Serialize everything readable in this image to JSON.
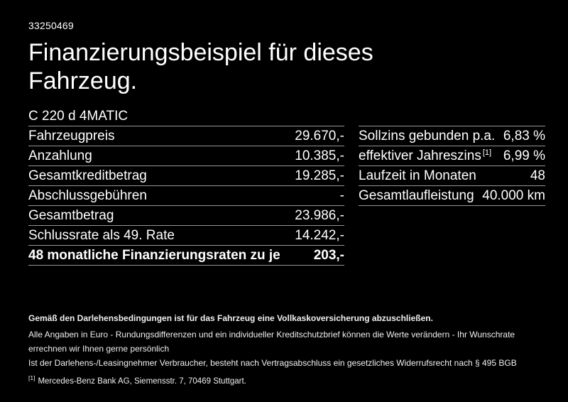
{
  "page": {
    "background_color": "#000000",
    "text_color": "#ffffff",
    "divider_color": "#969696"
  },
  "header": {
    "ref_number": "33250469",
    "title_lines": [
      "Finanzierungsbeispiel für dieses",
      "Fahrzeug."
    ],
    "model": "C 220 d 4MATIC"
  },
  "finance_table": {
    "rows": [
      {
        "label": "Fahrzeugpreis",
        "value": "29.670,-"
      },
      {
        "label": "Anzahlung",
        "value": "10.385,-"
      },
      {
        "label": "Gesamtkreditbetrag",
        "value": "19.285,-"
      },
      {
        "label": "Abschlussgebühren",
        "value": "-"
      },
      {
        "label": "Gesamtbetrag",
        "value": "23.986,-"
      },
      {
        "label": "Schlussrate als 49. Rate",
        "value": "14.242,-"
      },
      {
        "label": "48 monatliche Finanzierungsraten zu je",
        "value": "203,-"
      }
    ]
  },
  "conditions_table": {
    "rows": [
      {
        "label": "Sollzins gebunden p.a.",
        "sup": "",
        "value": "6,83 %"
      },
      {
        "label": "effektiver Jahreszins",
        "sup": "[1]",
        "value": "6,99 %"
      },
      {
        "label": "Laufzeit in Monaten",
        "sup": "",
        "value": "48"
      },
      {
        "label": "Gesamtlaufleistung",
        "sup": "",
        "value": "40.000 km"
      }
    ]
  },
  "footer": {
    "bold_note": "Gemäß den Darlehensbedingungen ist für das Fahrzeug eine Vollkaskoversicherung abzuschließen.",
    "notes": [
      "Alle Angaben in Euro - Rundungsdifferenzen und ein individueller Kreditschutzbrief können die Werte verändern - Ihr Wunschrate errechnen wir Ihnen gerne persönlich",
      "Ist der Darlehens-/Leasingnehmer Verbraucher, besteht nach Vertragsabschluss ein gesetzliches Widerrufsrecht nach § 495 BGB"
    ],
    "footnote_marker": "[1]",
    "footnote": "Mercedes-Benz Bank AG, Siemensstr. 7, 70469 Stuttgart."
  }
}
